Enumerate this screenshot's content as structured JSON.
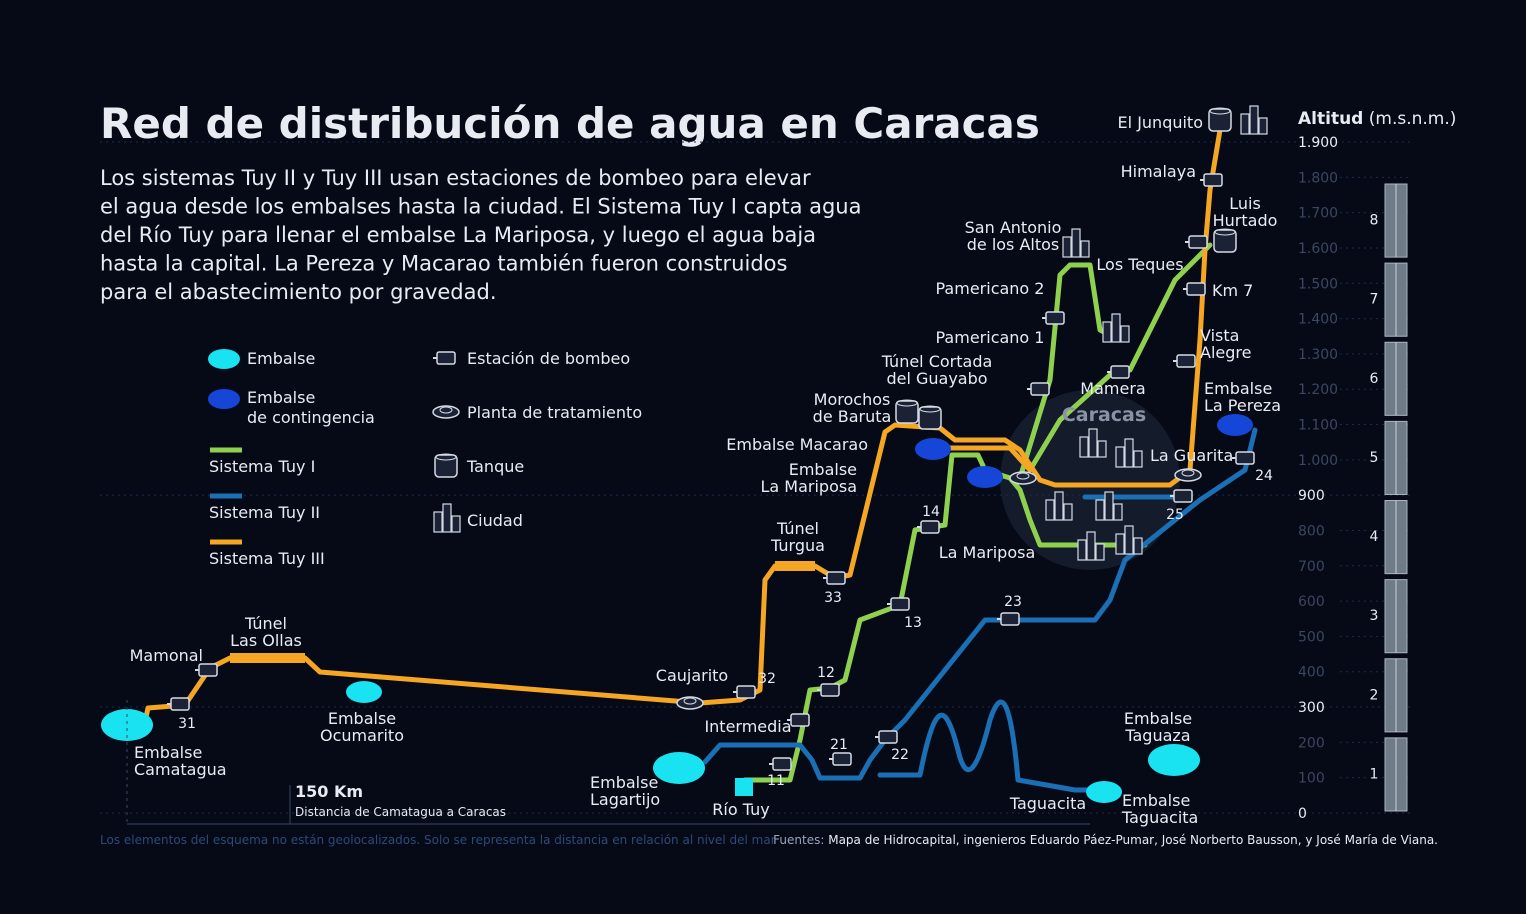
{
  "title": "Red de distribución de agua en Caracas",
  "subtitle": [
    "Los sistemas Tuy II y Tuy III usan estaciones de bombeo para elevar",
    "el agua desde los embalses hasta la ciudad. El Sistema Tuy I capta agua",
    "del Río Tuy para llenar el embalse La Mariposa, y luego el agua baja",
    "hasta la capital. La Pereza y Macarao también fueron construidos",
    "para el abastecimiento por gravedad."
  ],
  "legend": {
    "embalse": [
      "Embalse"
    ],
    "contingencia": [
      "Embalse",
      "de contingencia"
    ],
    "systems": [
      {
        "name": "Sistema Tuy I",
        "color": "#8fd14f"
      },
      {
        "name": "Sistema Tuy II",
        "color": "#1a6fb5"
      },
      {
        "name": "Sistema Tuy III",
        "color": "#f5a623"
      }
    ],
    "icons": [
      "Estación de bombeo",
      "Planta de tratamiento",
      "Tanque",
      "Ciudad"
    ]
  },
  "colors": {
    "embalse": "#19e3f0",
    "contingencia": "#1646d8"
  },
  "axis": {
    "title": "Altitud",
    "unit": "(m.s.n.m.)",
    "ticks": [
      {
        "value": 1900,
        "label": "1.900",
        "emphasized": true
      },
      {
        "value": 1800,
        "label": "1.800"
      },
      {
        "value": 1700,
        "label": "1.700"
      },
      {
        "value": 1600,
        "label": "1.600"
      },
      {
        "value": 1500,
        "label": "1.500"
      },
      {
        "value": 1400,
        "label": "1.400"
      },
      {
        "value": 1300,
        "label": "1.300"
      },
      {
        "value": 1200,
        "label": "1.200"
      },
      {
        "value": 1100,
        "label": "1.100"
      },
      {
        "value": 1000,
        "label": "1.000"
      },
      {
        "value": 900,
        "label": "900",
        "emphasized": true
      },
      {
        "value": 800,
        "label": "800"
      },
      {
        "value": 700,
        "label": "700"
      },
      {
        "value": 600,
        "label": "600"
      },
      {
        "value": 500,
        "label": "500"
      },
      {
        "value": 400,
        "label": "400"
      },
      {
        "value": 300,
        "label": "300",
        "emphasized": true
      },
      {
        "value": 200,
        "label": "200"
      },
      {
        "value": 100,
        "label": "100"
      },
      {
        "value": 0,
        "label": "0",
        "emphasized": true
      }
    ],
    "floors": [
      "8",
      "7",
      "6",
      "5",
      "4",
      "3",
      "2",
      "1"
    ]
  },
  "labels": [
    [
      "El Junquito"
    ],
    [
      "Himalaya"
    ],
    [
      "Luis",
      "Hurtado"
    ],
    [
      "San Antonio",
      "de los Altos"
    ],
    [
      "Los Teques"
    ],
    [
      "Km 7"
    ],
    [
      "Pamericano 2"
    ],
    [
      "Pamericano 1"
    ],
    [
      "Vista",
      "Alegre"
    ],
    [
      "Túnel Cortada",
      "del Guayabo"
    ],
    [
      "Mamera"
    ],
    [
      "Embalse",
      "La Pereza"
    ],
    [
      "Morochos",
      "de Baruta"
    ],
    [
      "Embalse Macarao"
    ],
    [
      "La Guarita"
    ],
    [
      "Embalse",
      "La Mariposa"
    ],
    [
      "La Mariposa"
    ],
    [
      "Túnel",
      "Turgua"
    ],
    [
      "Túnel",
      "Las Ollas"
    ],
    [
      "Mamonal"
    ],
    [
      "Caujarito"
    ],
    [
      "Embalse",
      "Ocumarito"
    ],
    [
      "Intermedia"
    ],
    [
      "Embalse",
      "Camatagua"
    ],
    [
      "Embalse",
      "Lagartijo"
    ],
    [
      "Río Tuy"
    ],
    [
      "Embalse",
      "Taguaza"
    ],
    [
      "Taguacita"
    ],
    [
      "Embalse",
      "Taguacita"
    ]
  ],
  "city": "Caracas",
  "stations": [
    "31",
    "32",
    "33",
    "14",
    "13",
    "12",
    "11",
    "21",
    "22",
    "23",
    "24",
    "25"
  ],
  "distance": {
    "value": "150 Km",
    "caption": "Distancia de Camatagua a Caracas"
  },
  "footnote": "Los elementos del esquema no están geolocalizados. Solo se representa la distancia en relación al nivel del mar",
  "sources": {
    "lead": "Fuentes:",
    "text": "Mapa de Hidrocapital, ingenieros Eduardo Páez-Pumar, José Norberto Bausson, y José María de Viana."
  }
}
